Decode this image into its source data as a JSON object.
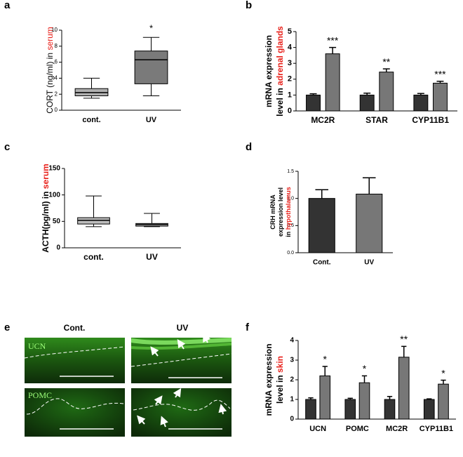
{
  "chart_data": [
    {
      "panel": "a",
      "type": "box",
      "ylabel": [
        [
          {
            "text": "CORT (ng/ml) in ",
            "color": "#000000"
          },
          {
            "text": "serum",
            "color": "#e8201a"
          }
        ]
      ],
      "categories": [
        "cont.",
        "UV"
      ],
      "boxes": [
        {
          "min": 1.5,
          "q1": 1.8,
          "median": 2.2,
          "q3": 2.7,
          "max": 4.0,
          "color": "#b0b0b0"
        },
        {
          "min": 1.8,
          "q1": 3.3,
          "median": 6.3,
          "q3": 7.4,
          "max": 9.1,
          "color": "#7a7a7a"
        }
      ],
      "annotations": [
        null,
        "*"
      ],
      "ylim": [
        0,
        10
      ],
      "yticks": [
        0,
        2,
        4,
        6,
        8,
        10
      ]
    },
    {
      "panel": "b",
      "type": "bar",
      "ylabel": [
        [
          {
            "text": "mRNA expression",
            "color": "#000000"
          }
        ],
        [
          {
            "text": "level in ",
            "color": "#000000"
          },
          {
            "text": "adrenal glands",
            "color": "#e8201a"
          }
        ]
      ],
      "categories": [
        "MC2R",
        "STAR",
        "CYP11B1"
      ],
      "series": [
        {
          "color": "#333333",
          "values": [
            1.0,
            1.0,
            1.0
          ],
          "errors": [
            0.08,
            0.12,
            0.1
          ]
        },
        {
          "color": "#777777",
          "values": [
            3.6,
            2.45,
            1.75
          ],
          "errors": [
            0.4,
            0.2,
            0.12
          ]
        }
      ],
      "annotations": [
        "***",
        "**",
        "***"
      ],
      "ylim": [
        0,
        5
      ],
      "yticks": [
        0,
        1,
        2,
        3,
        4,
        5
      ]
    },
    {
      "panel": "c",
      "type": "box",
      "ylabel": [
        [
          {
            "text": "ACTH(pg/ml) in ",
            "color": "#000000"
          },
          {
            "text": "serum",
            "color": "#e8201a"
          }
        ]
      ],
      "categories": [
        "cont.",
        "UV"
      ],
      "boxes": [
        {
          "min": 40,
          "q1": 45,
          "median": 52,
          "q3": 57,
          "max": 98,
          "color": "#bdbdbd"
        },
        {
          "min": 40,
          "q1": 41,
          "median": 44,
          "q3": 46,
          "max": 65,
          "color": "#bdbdbd"
        }
      ],
      "ylim": [
        0,
        150
      ],
      "yticks": [
        0,
        50,
        100,
        150
      ]
    },
    {
      "panel": "d",
      "type": "bar",
      "ylabel": [
        [
          {
            "text": "CRH mRNA",
            "color": "#000000"
          }
        ],
        [
          {
            "text": "expression level",
            "color": "#000000"
          }
        ],
        [
          {
            "text": "in ",
            "color": "#000000"
          },
          {
            "text": "hypothalamus",
            "color": "#e8201a"
          }
        ]
      ],
      "categories": [
        "Cont.",
        "UV"
      ],
      "series": [
        {
          "colors": [
            "#333333",
            "#777777"
          ],
          "values": [
            1.0,
            1.08
          ],
          "errors": [
            0.16,
            0.3
          ]
        }
      ],
      "ylim": [
        0,
        1.5
      ],
      "yticks": [
        {
          "value": 0,
          "label": "0.0"
        },
        {
          "value": 0.5,
          "label": "0.5"
        },
        {
          "value": 1,
          "label": "1.0"
        },
        {
          "value": 1.5,
          "label": "1.5"
        }
      ]
    },
    {
      "panel": "f",
      "type": "bar",
      "ylabel": [
        [
          {
            "text": "mRNA expression",
            "color": "#000000"
          }
        ],
        [
          {
            "text": "level in ",
            "color": "#000000"
          },
          {
            "text": "skin",
            "color": "#e8201a"
          }
        ]
      ],
      "categories": [
        "UCN",
        "POMC",
        "MC2R",
        "CYP11B1"
      ],
      "series": [
        {
          "color": "#333333",
          "values": [
            1.0,
            1.0,
            1.0,
            1.0
          ],
          "errors": [
            0.08,
            0.06,
            0.15,
            0.03
          ]
        },
        {
          "color": "#777777",
          "values": [
            2.2,
            1.85,
            3.15,
            1.78
          ],
          "errors": [
            0.48,
            0.35,
            0.55,
            0.2
          ]
        }
      ],
      "annotations": [
        "*",
        "*",
        "**",
        "*"
      ],
      "ylim": [
        0,
        4
      ],
      "yticks": [
        0,
        1,
        2,
        3,
        4
      ]
    }
  ],
  "images": {
    "panel": "e",
    "columns": [
      "Cont.",
      "UV"
    ],
    "rows": [
      "UCN",
      "POMC"
    ]
  }
}
